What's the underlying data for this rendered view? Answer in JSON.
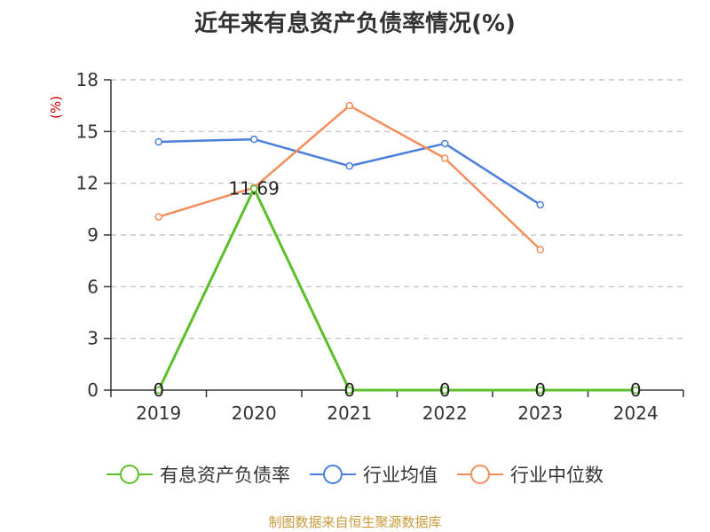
{
  "title": "近年来有息资产负债率情况(%)",
  "unit_label": "(%)",
  "source": "制图数据来自恒生聚源数据库",
  "colors": {
    "debt_ratio": "#5cbf2a",
    "industry_avg": "#4a7fdb",
    "industry_median": "#f28e5c",
    "axis": "#333333",
    "grid": "#bbbbbb",
    "unit": "#cc0000",
    "source": "#c99a3a"
  },
  "chart_data": {
    "type": "line",
    "title": "近年来有息资产负债率情况(%)",
    "ylabel": "(%)",
    "xlabel": "",
    "categories": [
      "2019",
      "2020",
      "2021",
      "2022",
      "2023",
      "2024"
    ],
    "ylim": [
      0,
      18
    ],
    "yticks": [
      0,
      3,
      6,
      9,
      12,
      15,
      18
    ],
    "grid": true,
    "legend_position": "bottom",
    "series": [
      {
        "name": "有息资产负债率",
        "key": "debt_ratio",
        "values": [
          0,
          11.69,
          0,
          0,
          0,
          0
        ],
        "labels": [
          "0",
          "11.69",
          "0",
          "0",
          "0",
          "0"
        ]
      },
      {
        "name": "行业均值",
        "key": "industry_avg",
        "values": [
          14.4,
          14.55,
          13.0,
          14.3,
          10.75,
          null
        ]
      },
      {
        "name": "行业中位数",
        "key": "industry_median",
        "values": [
          10.05,
          11.75,
          16.5,
          13.45,
          8.15,
          null
        ]
      }
    ]
  }
}
